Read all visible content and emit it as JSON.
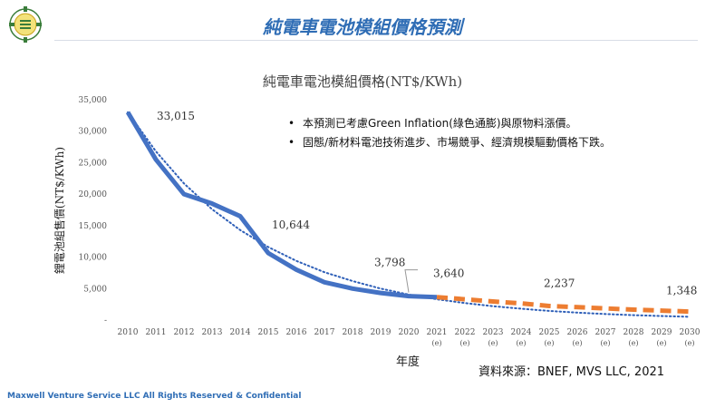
{
  "slide": {
    "title": "純電車電池模組價格預測",
    "footer": "Maxwell Venture Service LLC   All Rights Reserved & Confidential",
    "source": "資料來源：BNEF, MVS LLC, 2021",
    "notes": [
      "本預測已考慮Green Inflation(綠色通膨)與原物料漲價。",
      "固態/新材料電池技術進步、市場競爭、經濟規模驅動價格下跌。"
    ]
  },
  "colors": {
    "title": "#2f6db5",
    "actual": "#4472c4",
    "forecast": "#ed7d31",
    "trend": "#2e5fb8",
    "axis_text": "#555555"
  },
  "chart_data": {
    "type": "line",
    "title": "純電車電池模組價格(NT$/KWh)",
    "xlabel": "年度",
    "ylabel": "鋰電池組售價(NT$/KWh)",
    "ylim": [
      0,
      35000
    ],
    "yticks": [
      0,
      5000,
      10000,
      15000,
      20000,
      25000,
      30000,
      35000
    ],
    "ytick_labels": [
      "-",
      "5,000",
      "10,000",
      "15,000",
      "20,000",
      "25,000",
      "30,000",
      "35,000"
    ],
    "categories": [
      "2010",
      "2011",
      "2012",
      "2013",
      "2014",
      "2015",
      "2016",
      "2017",
      "2018",
      "2019",
      "2020",
      "2021",
      "2022",
      "2023",
      "2024",
      "2025",
      "2026",
      "2027",
      "2028",
      "2029",
      "2030"
    ],
    "estimate_mark": "(e)",
    "estimate_from_index": 11,
    "series": [
      {
        "name": "actual",
        "style": "solid",
        "values": [
          33015,
          25500,
          20000,
          18500,
          16500,
          10644,
          8000,
          6000,
          5000,
          4300,
          3798,
          3640,
          null,
          null,
          null,
          null,
          null,
          null,
          null,
          null,
          null
        ]
      },
      {
        "name": "forecast",
        "style": "dashed",
        "values": [
          null,
          null,
          null,
          null,
          null,
          null,
          null,
          null,
          null,
          null,
          null,
          3640,
          3300,
          2950,
          2650,
          2237,
          2050,
          1850,
          1650,
          1500,
          1348
        ]
      },
      {
        "name": "trend",
        "style": "dotted",
        "values": [
          33015,
          26800,
          21700,
          17600,
          14300,
          11600,
          9400,
          7600,
          6200,
          5000,
          4050,
          3300,
          2700,
          2200,
          1800,
          1450,
          1180,
          960,
          780,
          640,
          520
        ]
      }
    ],
    "data_labels": [
      {
        "index": 0,
        "text": "33,015"
      },
      {
        "index": 5,
        "text": "10,644"
      },
      {
        "index": 10,
        "text": "3,798"
      },
      {
        "index": 11,
        "text": "3,640"
      },
      {
        "index": 15,
        "text": "2,237"
      },
      {
        "index": 20,
        "text": "1,348"
      }
    ]
  }
}
